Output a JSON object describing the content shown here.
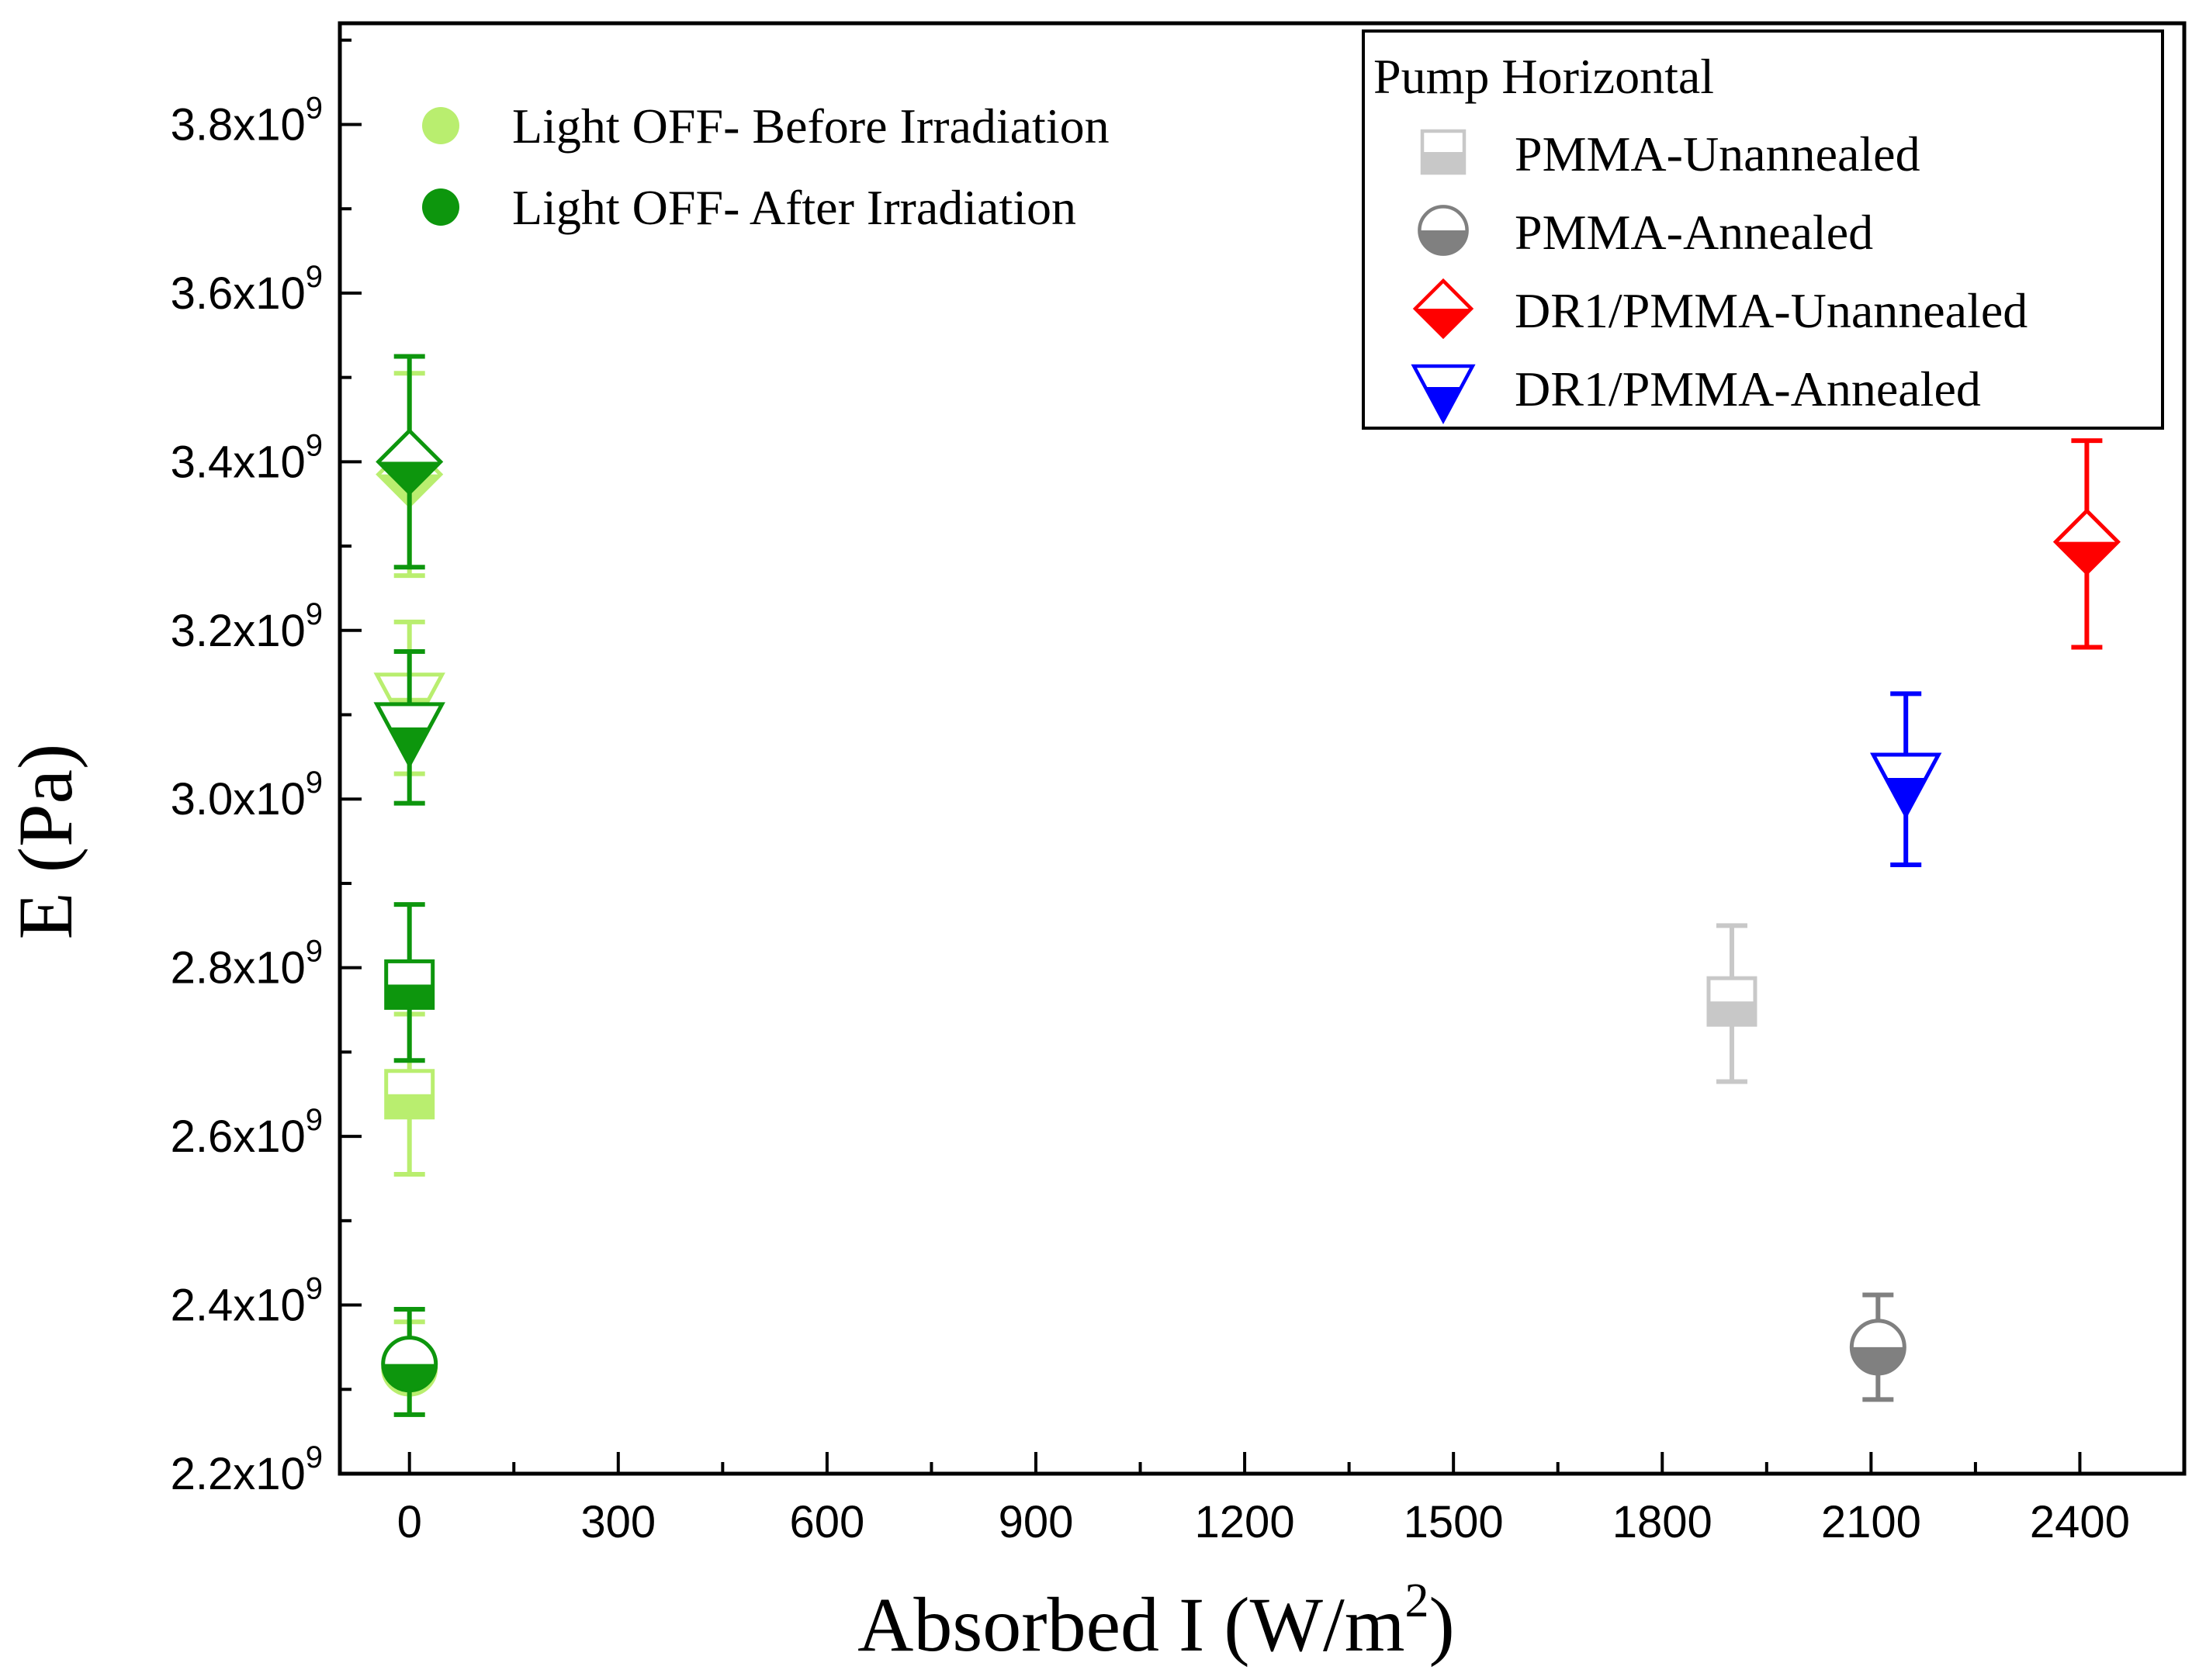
{
  "chart_data": {
    "type": "scatter",
    "xlabel": "Absorbed I (W/m",
    "xlabel_sup": "2",
    "xlabel_end": ")",
    "ylabel": "E (Pa)",
    "xlim": [
      -100,
      2550
    ],
    "ylim": [
      2200000000.0,
      3920000000.0
    ],
    "xticks": [
      0,
      300,
      600,
      900,
      1200,
      1500,
      1800,
      2100,
      2400
    ],
    "xtick_labels": [
      "0",
      "300",
      "600",
      "900",
      "1200",
      "1500",
      "1800",
      "2100",
      "2400"
    ],
    "yticks": [
      2200000000.0,
      2400000000.0,
      2600000000.0,
      2800000000.0,
      3000000000.0,
      3200000000.0,
      3400000000.0,
      3600000000.0,
      3800000000.0
    ],
    "ytick_mantissa": [
      "2.2x10",
      "2.4x10",
      "2.6x10",
      "2.8x10",
      "3.0x10",
      "3.2x10",
      "3.4x10",
      "3.6x10",
      "3.8x10"
    ],
    "ytick_exp": "9",
    "colors": {
      "light_green": "#b9ee6f",
      "dark_green": "#0d960d",
      "light_gray": "#c8c8c8",
      "dark_gray": "#808080",
      "red": "#ff0000",
      "blue": "#0000ff"
    },
    "legend_left": {
      "placement": "top-left",
      "entries": [
        {
          "label": "Light OFF- Before Irradiation",
          "color": "light_green",
          "marker": "circle"
        },
        {
          "label": "Light OFF- After Irradiation",
          "color": "dark_green",
          "marker": "circle"
        }
      ]
    },
    "legend_right": {
      "placement": "top-right",
      "title": "Pump Horizontal",
      "entries": [
        {
          "label": "PMMA-Unannealed",
          "color": "light_gray",
          "marker": "square"
        },
        {
          "label": "PMMA-Annealed",
          "color": "dark_gray",
          "marker": "circle"
        },
        {
          "label": "DR1/PMMA-Unannealed",
          "color": "red",
          "marker": "diamond"
        },
        {
          "label": "DR1/PMMA-Annealed",
          "color": "blue",
          "marker": "triangle-down"
        }
      ]
    },
    "series": [
      {
        "name": "PMMA-Unannealed",
        "condition": "Light OFF- Before Irradiation",
        "marker": "square",
        "color": "light_green",
        "x": 0,
        "y": 2650000000.0,
        "err_low": 2555000000.0,
        "err_high": 2745000000.0
      },
      {
        "name": "PMMA-Annealed",
        "condition": "Light OFF- Before Irradiation",
        "marker": "circle",
        "color": "light_green",
        "x": 0,
        "y": 2325000000.0,
        "err_low": 2270000000.0,
        "err_high": 2380000000.0
      },
      {
        "name": "DR1/PMMA-Unannealed",
        "condition": "Light OFF- Before Irradiation",
        "marker": "diamond",
        "color": "light_green",
        "x": 0,
        "y": 3385000000.0,
        "err_low": 3265000000.0,
        "err_high": 3505000000.0
      },
      {
        "name": "DR1/PMMA-Annealed",
        "condition": "Light OFF- Before Irradiation",
        "marker": "triangle-down",
        "color": "light_green",
        "x": 0,
        "y": 3120000000.0,
        "err_low": 3030000000.0,
        "err_high": 3210000000.0
      },
      {
        "name": "PMMA-Unannealed",
        "condition": "Light OFF- After Irradiation",
        "marker": "square",
        "color": "dark_green",
        "x": 0,
        "y": 2780000000.0,
        "err_low": 2690000000.0,
        "err_high": 2875000000.0
      },
      {
        "name": "PMMA-Annealed",
        "condition": "Light OFF- After Irradiation",
        "marker": "circle",
        "color": "dark_green",
        "x": 0,
        "y": 2330000000.0,
        "err_low": 2270000000.0,
        "err_high": 2395000000.0
      },
      {
        "name": "DR1/PMMA-Unannealed",
        "condition": "Light OFF- After Irradiation",
        "marker": "diamond",
        "color": "dark_green",
        "x": 0,
        "y": 3400000000.0,
        "err_low": 3275000000.0,
        "err_high": 3525000000.0
      },
      {
        "name": "DR1/PMMA-Annealed",
        "condition": "Light OFF- After Irradiation",
        "marker": "triangle-down",
        "color": "dark_green",
        "x": 0,
        "y": 3085000000.0,
        "err_low": 2995000000.0,
        "err_high": 3175000000.0
      },
      {
        "name": "PMMA-Unannealed",
        "condition": "Pump Horizontal",
        "marker": "square",
        "color": "light_gray",
        "x": 1900,
        "y": 2760000000.0,
        "err_low": 2665000000.0,
        "err_high": 2850000000.0
      },
      {
        "name": "PMMA-Annealed",
        "condition": "Pump Horizontal",
        "marker": "circle",
        "color": "dark_gray",
        "x": 2110,
        "y": 2350000000.0,
        "err_low": 2288000000.0,
        "err_high": 2412000000.0
      },
      {
        "name": "DR1/PMMA-Unannealed",
        "condition": "Pump Horizontal",
        "marker": "diamond",
        "color": "red",
        "x": 2410,
        "y": 3305000000.0,
        "err_low": 3180000000.0,
        "err_high": 3425000000.0
      },
      {
        "name": "DR1/PMMA-Annealed",
        "condition": "Pump Horizontal",
        "marker": "triangle-down",
        "color": "blue",
        "x": 2150,
        "y": 3025000000.0,
        "err_low": 2922000000.0,
        "err_high": 3125000000.0
      }
    ]
  }
}
